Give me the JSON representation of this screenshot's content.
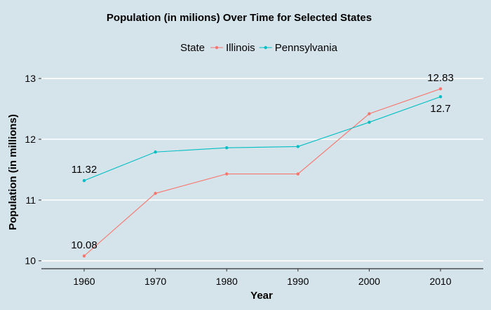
{
  "chart_data": {
    "type": "line",
    "title": "Population (in milions) Over Time for Selected States",
    "xlabel": "Year",
    "ylabel": "Population (in millions)",
    "x": [
      1960,
      1970,
      1980,
      1990,
      2000,
      2010
    ],
    "x_tick_labels": [
      "1960",
      "1970",
      "1980",
      "1990",
      "2000",
      "2010"
    ],
    "y_ticks": [
      10,
      11,
      12,
      13
    ],
    "y_tick_labels": [
      "10",
      "11",
      "12",
      "13"
    ],
    "xlim": [
      1954,
      2016
    ],
    "ylim": [
      9.87,
      13.14
    ],
    "legend": {
      "title": "State",
      "position": "top-center"
    },
    "series": [
      {
        "name": "Illinois",
        "color": "#f8766d",
        "values": [
          10.08,
          11.11,
          11.43,
          11.43,
          12.42,
          12.83
        ]
      },
      {
        "name": "Pennsylvania",
        "color": "#00bfc4",
        "values": [
          11.32,
          11.79,
          11.86,
          11.88,
          12.28,
          12.7
        ]
      }
    ],
    "annotations": [
      {
        "text": "10.08",
        "x": 1960,
        "series": "Illinois",
        "placement": "above"
      },
      {
        "text": "11.32",
        "x": 1960,
        "series": "Pennsylvania",
        "placement": "above"
      },
      {
        "text": "12.83",
        "x": 2010,
        "series": "Illinois",
        "placement": "above"
      },
      {
        "text": "12.7",
        "x": 2010,
        "series": "Pennsylvania",
        "placement": "below"
      }
    ],
    "grid": "horizontal-major",
    "gridline_color": "#ffffff",
    "background_color": "#d5e3ea"
  }
}
